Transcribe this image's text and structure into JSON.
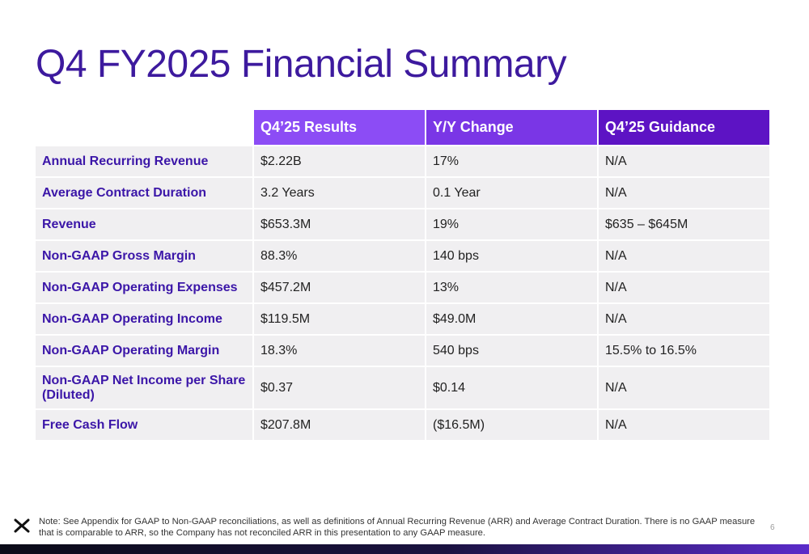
{
  "title": "Q4 FY2025 Financial Summary",
  "table": {
    "headers": [
      "",
      "Q4’25 Results",
      "Y/Y Change",
      "Q4’25 Guidance"
    ],
    "rows": [
      {
        "metric": "Annual Recurring Revenue",
        "results": "$2.22B",
        "yoy": "17%",
        "guidance": "N/A"
      },
      {
        "metric": "Average Contract Duration",
        "results": "3.2 Years",
        "yoy": "0.1 Year",
        "guidance": "N/A"
      },
      {
        "metric": "Revenue",
        "results": "$653.3M",
        "yoy": "19%",
        "guidance": "$635 – $645M"
      },
      {
        "metric": "Non-GAAP Gross Margin",
        "results": "88.3%",
        "yoy": "140 bps",
        "guidance": "N/A"
      },
      {
        "metric": "Non-GAAP Operating Expenses",
        "results": "$457.2M",
        "yoy": "13%",
        "guidance": "N/A"
      },
      {
        "metric": "Non-GAAP Operating Income",
        "results": "$119.5M",
        "yoy": "$49.0M",
        "guidance": "N/A"
      },
      {
        "metric": "Non-GAAP Operating Margin",
        "results": "18.3%",
        "yoy": "540 bps",
        "guidance": "15.5% to 16.5%"
      },
      {
        "metric": "Non-GAAP Net Income per Share (Diluted)",
        "results": "$0.37",
        "yoy": "$0.14",
        "guidance": "N/A"
      },
      {
        "metric": "Free Cash Flow",
        "results": "$207.8M",
        "yoy": "($16.5M)",
        "guidance": "N/A"
      }
    ]
  },
  "footer": {
    "logo_icon": "x-logo-icon",
    "note": "Note: See Appendix for GAAP to Non-GAAP reconciliations, as well as definitions of Annual Recurring Revenue (ARR) and Average Contract Duration. There is no GAAP measure that is comparable to ARR, so the Company has not reconciled ARR in this presentation to any GAAP measure.",
    "page_number": "6"
  },
  "colors": {
    "title": "#3d1a9e",
    "label": "#3b16a8",
    "header_1": "#8c4cf5",
    "header_2": "#7a36e6",
    "header_3": "#5d13c4",
    "row_bg": "#f0eff1"
  }
}
